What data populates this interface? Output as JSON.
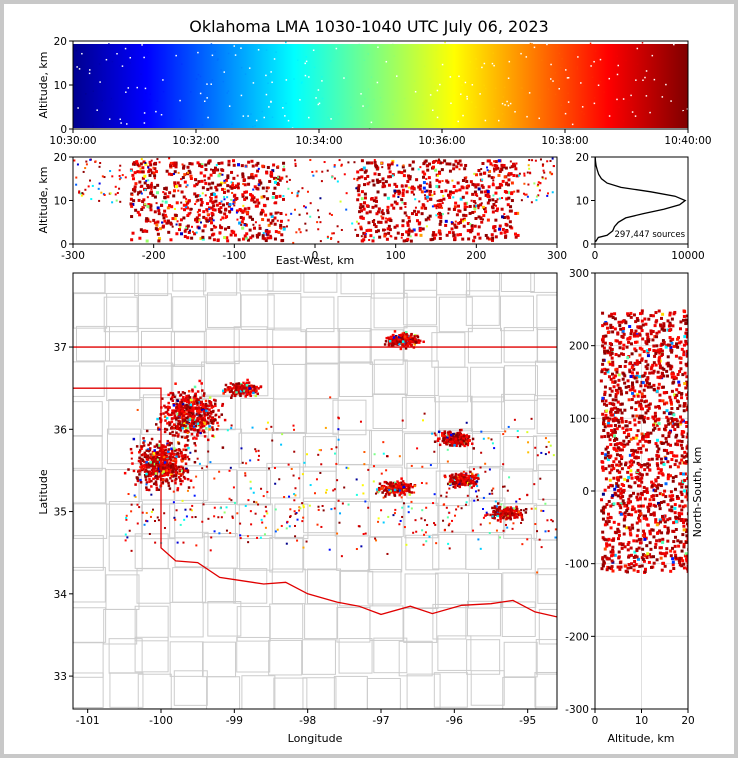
{
  "title": "Oklahoma LMA 1030-1040 UTC July 06, 2023",
  "colors": {
    "state_border": "#e00000",
    "county_lines": "#c8c8c8",
    "frame": "#c8c8c8"
  },
  "chart_data": [
    {
      "name": "time-height",
      "type": "scatter",
      "xlabel": "",
      "ylabel": "Altitude, km",
      "xlim": [
        "10:30:00",
        "10:40:00"
      ],
      "ylim": [
        0,
        20
      ],
      "xticks": [
        "10:30:00",
        "10:32:00",
        "10:34:00",
        "10:36:00",
        "10:38:00",
        "10:40:00"
      ],
      "yticks": [
        0,
        10,
        20
      ],
      "colormap": "jet (by time)",
      "density_profile": "dense 0-20 km throughout the interval"
    },
    {
      "name": "east-west-vs-altitude",
      "type": "scatter",
      "xlabel": "East-West, km",
      "ylabel": "Altitude, km",
      "xlim": [
        -300,
        300
      ],
      "ylim": [
        0,
        20
      ],
      "xticks": [
        -300,
        -200,
        -100,
        0,
        100,
        200,
        300
      ],
      "yticks": [
        0,
        10,
        20
      ],
      "clusters_x_km": [
        [
          -230,
          -40
        ],
        [
          50,
          250
        ]
      ]
    },
    {
      "name": "altitude-histogram",
      "type": "line",
      "xlabel": "",
      "ylabel": "",
      "xlim": [
        0,
        10000
      ],
      "ylim": [
        0,
        20
      ],
      "xticks": [
        0,
        10000
      ],
      "yticks": [
        0,
        10,
        20
      ],
      "annotation": "297,447 sources",
      "profile": [
        {
          "alt": 0.5,
          "count": 50
        },
        {
          "alt": 1.5,
          "count": 350
        },
        {
          "alt": 2,
          "count": 1300
        },
        {
          "alt": 3,
          "count": 1900
        },
        {
          "alt": 4,
          "count": 2100
        },
        {
          "alt": 5,
          "count": 2500
        },
        {
          "alt": 6,
          "count": 3300
        },
        {
          "alt": 7,
          "count": 5200
        },
        {
          "alt": 8,
          "count": 7400
        },
        {
          "alt": 9,
          "count": 9100
        },
        {
          "alt": 10,
          "count": 9700
        },
        {
          "alt": 11,
          "count": 8600
        },
        {
          "alt": 12,
          "count": 6000
        },
        {
          "alt": 13,
          "count": 2800
        },
        {
          "alt": 14,
          "count": 1300
        },
        {
          "alt": 15,
          "count": 700
        },
        {
          "alt": 16,
          "count": 400
        },
        {
          "alt": 17,
          "count": 250
        },
        {
          "alt": 18,
          "count": 120
        },
        {
          "alt": 19,
          "count": 50
        },
        {
          "alt": 20,
          "count": 20
        }
      ]
    },
    {
      "name": "plan-view-map",
      "type": "scatter",
      "xlabel": "Longitude",
      "ylabel": "Latitude",
      "xlim": [
        -101.2,
        -94.6
      ],
      "ylim": [
        32.6,
        37.9
      ],
      "xticks": [
        -101,
        -100,
        -99,
        -98,
        -97,
        -96,
        -95
      ],
      "yticks": [
        33,
        34,
        35,
        36,
        37
      ],
      "clusters": [
        {
          "lon": -99.6,
          "lat": 36.2
        },
        {
          "lon": -100.0,
          "lat": 35.6
        },
        {
          "lon": -98.9,
          "lat": 36.5
        },
        {
          "lon": -96.7,
          "lat": 37.1
        },
        {
          "lon": -96.0,
          "lat": 35.9
        },
        {
          "lon": -95.9,
          "lat": 35.4
        },
        {
          "lon": -95.3,
          "lat": 35.0
        },
        {
          "lon": -96.8,
          "lat": 35.3
        }
      ]
    },
    {
      "name": "altitude-vs-north-south",
      "type": "scatter",
      "xlabel": "Altitude, km",
      "ylabel": "North-South, km",
      "xlim": [
        0,
        20
      ],
      "ylim": [
        -300,
        300
      ],
      "xticks": [
        0,
        10,
        20
      ],
      "yticks": [
        -300,
        -200,
        -100,
        0,
        100,
        200,
        300
      ],
      "extent_ns_km": [
        -110,
        250
      ]
    }
  ]
}
